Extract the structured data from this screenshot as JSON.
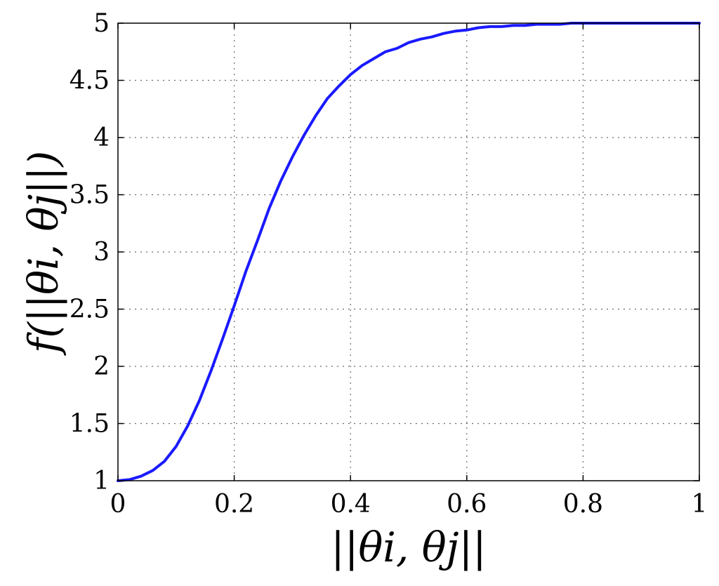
{
  "chart_data": {
    "type": "line",
    "title": "",
    "xlabel": "||θi, θj||",
    "ylabel": "f(||θi, θj||)",
    "xlim": [
      0,
      1
    ],
    "ylim": [
      1,
      5
    ],
    "grid": true,
    "xticks": [
      0,
      0.2,
      0.4,
      0.6,
      0.8,
      1
    ],
    "xtick_labels": [
      "0",
      "0.2",
      "0.4",
      "0.6",
      "0.8",
      "1"
    ],
    "yticks": [
      1,
      1.5,
      2,
      2.5,
      3,
      3.5,
      4,
      4.5,
      5
    ],
    "ytick_labels": [
      "1",
      "1.5",
      "2",
      "2.5",
      "3",
      "3.5",
      "4",
      "4.5",
      "5"
    ],
    "line_color": "#1a1aff",
    "series": [
      {
        "x": [
          0,
          0.02,
          0.04,
          0.06,
          0.08,
          0.1,
          0.12,
          0.14,
          0.16,
          0.18,
          0.2,
          0.22,
          0.24,
          0.26,
          0.28,
          0.3,
          0.32,
          0.34,
          0.36,
          0.38,
          0.4,
          0.42,
          0.44,
          0.46,
          0.48,
          0.5,
          0.52,
          0.54,
          0.56,
          0.58,
          0.6,
          0.62,
          0.64,
          0.66,
          0.68,
          0.7,
          0.72,
          0.74,
          0.76,
          0.78,
          0.8,
          0.85,
          0.9,
          0.95,
          1
        ],
        "y": [
          1,
          1.01,
          1.04,
          1.09,
          1.17,
          1.3,
          1.48,
          1.7,
          1.96,
          2.24,
          2.53,
          2.83,
          3.1,
          3.38,
          3.62,
          3.83,
          4.02,
          4.19,
          4.34,
          4.45,
          4.55,
          4.63,
          4.69,
          4.75,
          4.78,
          4.83,
          4.86,
          4.88,
          4.91,
          4.93,
          4.94,
          4.96,
          4.97,
          4.97,
          4.98,
          4.98,
          4.99,
          4.99,
          4.99,
          5,
          5,
          5,
          5,
          5,
          5
        ]
      }
    ]
  }
}
